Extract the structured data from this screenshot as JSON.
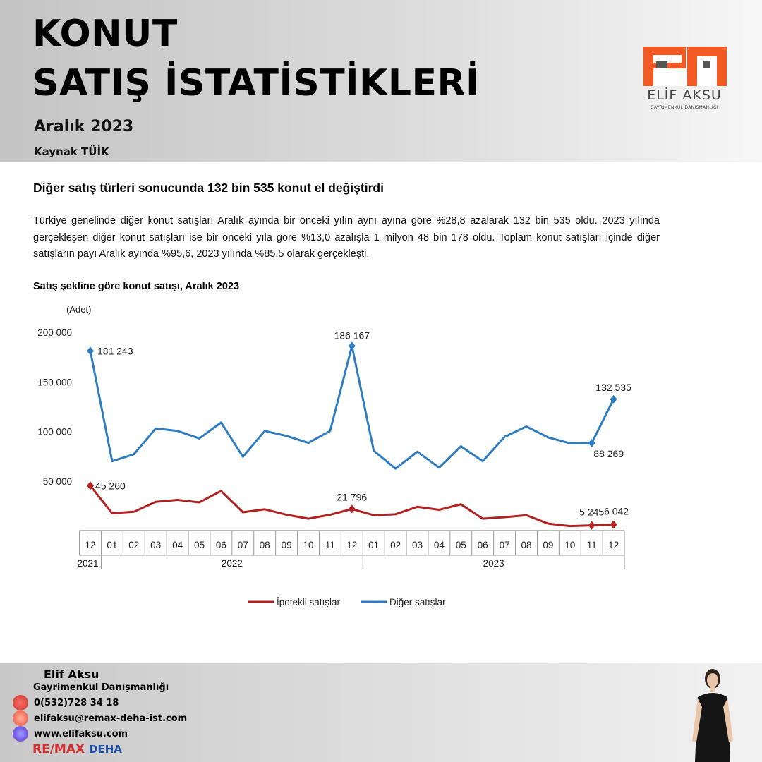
{
  "header": {
    "title_line1": "KONUT",
    "title_line2": "SATIŞ İSTATİSTİKLERİ",
    "period": "Aralık 2023",
    "source": "Kaynak TÜİK"
  },
  "logo": {
    "name": "ELİF AKSU",
    "subtitle": "GAYRIMENKUL DANISMANLIĞI",
    "color": "#f15a24"
  },
  "article": {
    "headline": "Diğer satış türleri sonucunda 132 bin 535 konut el değiştirdi",
    "paragraph": "Türkiye genelinde diğer konut satışları Aralık ayında bir önceki yılın aynı ayına göre %28,8 azalarak 132 bin 535 oldu. 2023 yılında gerçekleşen diğer konut satışları ise bir önceki yıla göre %13,0 azalışla 1 milyon 48 bin 178 oldu. Toplam konut satışları içinde diğer satışların payı Aralık ayında %95,6, 2023 yılında %85,5 olarak gerçekleşti.",
    "chart_title": "Satış şekline göre konut satışı, Aralık 2023"
  },
  "chart_data": {
    "type": "line",
    "title": "Satış şekline göre konut satışı, Aralık 2023",
    "ylabel": "(Adet)",
    "ylim": [
      0,
      200000
    ],
    "yticks": [
      50000,
      100000,
      150000,
      200000
    ],
    "ytick_labels": [
      "50 000",
      "100 000",
      "150 000",
      "200 000"
    ],
    "categories": [
      "12",
      "01",
      "02",
      "03",
      "04",
      "05",
      "06",
      "07",
      "08",
      "09",
      "10",
      "11",
      "12",
      "01",
      "02",
      "03",
      "04",
      "05",
      "06",
      "07",
      "08",
      "09",
      "10",
      "11",
      "12"
    ],
    "year_groups": [
      {
        "label": "2021",
        "start": 0,
        "end": 0
      },
      {
        "label": "2022",
        "start": 1,
        "end": 12
      },
      {
        "label": "2023",
        "start": 13,
        "end": 24
      }
    ],
    "series": [
      {
        "name": "İpotekli satışlar",
        "color": "#b22222",
        "values": [
          45260,
          17500,
          19000,
          29000,
          31000,
          28500,
          40000,
          18500,
          21500,
          16000,
          12000,
          16000,
          21796,
          15500,
          16500,
          24000,
          21000,
          26500,
          12000,
          13500,
          15500,
          7000,
          4500,
          5245,
          6042
        ],
        "labels": [
          {
            "index": 0,
            "text": "45 260"
          },
          {
            "index": 12,
            "text": "21 796"
          },
          {
            "index": 23,
            "text": "5 245"
          },
          {
            "index": 24,
            "text": "6 042"
          }
        ]
      },
      {
        "name": "Diğer satışlar",
        "color": "#2e7dc0",
        "values": [
          181243,
          70000,
          77000,
          103000,
          100500,
          93000,
          109000,
          74500,
          100500,
          95500,
          88500,
          100500,
          186167,
          80500,
          62500,
          79500,
          63500,
          85000,
          70000,
          94500,
          105000,
          94000,
          88000,
          88269,
          132535
        ],
        "labels": [
          {
            "index": 0,
            "text": "181 243"
          },
          {
            "index": 12,
            "text": "186 167"
          },
          {
            "index": 23,
            "text": "88 269"
          },
          {
            "index": 24,
            "text": "132 535"
          }
        ]
      }
    ]
  },
  "footer": {
    "name": "Elif Aksu",
    "subtitle": "Gayrimenkul Danışmanlığı",
    "phone": "0(532)728 34 18",
    "email": "elifaksu@remax-deha-ist.com",
    "website": "www.elifaksu.com",
    "brand_re": "RE/MAX",
    "brand_deha": "DEHA"
  }
}
